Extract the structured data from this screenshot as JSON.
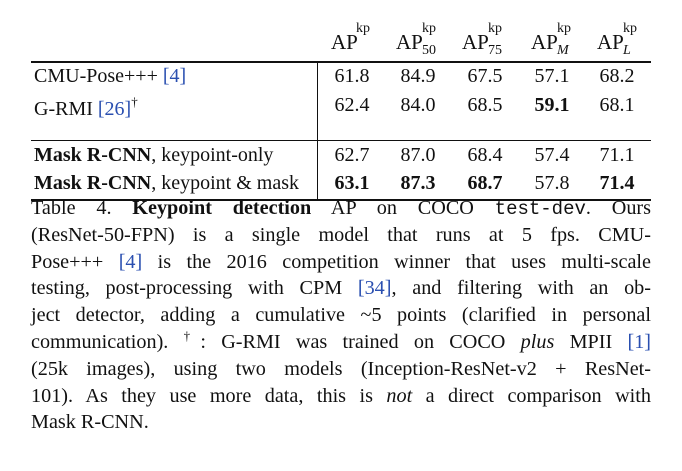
{
  "table": {
    "columns": [
      {
        "base": "AP",
        "sup": "kp",
        "sub": ""
      },
      {
        "base": "AP",
        "sup": "kp",
        "sub": "50"
      },
      {
        "base": "AP",
        "sup": "kp",
        "sub": "75"
      },
      {
        "base": "AP",
        "sup": "kp",
        "sub": "M"
      },
      {
        "base": "AP",
        "sup": "kp",
        "sub": "L"
      }
    ],
    "rows": [
      {
        "method": "CMU-Pose+++",
        "ref": "[4]",
        "dagger": "",
        "values": [
          "61.8",
          "84.9",
          "67.5",
          "57.1",
          "68.2"
        ]
      },
      {
        "method": "G-RMI",
        "ref": "[26]",
        "dagger": "†",
        "values": [
          "62.4",
          "84.0",
          "68.5",
          "59.1",
          "68.1"
        ]
      },
      {
        "method_bold": "Mask R-CNN",
        "method_rest": ", keypoint-only",
        "values": [
          "62.7",
          "87.0",
          "68.4",
          "57.4",
          "71.1"
        ]
      },
      {
        "method_bold": "Mask R-CNN",
        "method_rest": ", keypoint & mask",
        "values": [
          "63.1",
          "87.3",
          "68.7",
          "57.8",
          "71.4"
        ]
      }
    ]
  },
  "caption": {
    "l1_a": "Table 4. ",
    "l1_b": "Keypoint detection",
    "l1_c": " AP on COCO ",
    "l1_d": "test-dev",
    "l1_e": ".  Ours",
    "l2": "(ResNet-50-FPN) is a single model that runs at 5 fps.  CMU-",
    "l3_a": "Pose+++ ",
    "l3_b": "[4]",
    "l3_c": " is the 2016 competition winner that uses multi-scale",
    "l4_a": "testing, post-processing with CPM ",
    "l4_b": "[34]",
    "l4_c": ", and filtering with an ob-",
    "l5": "ject detector, adding a cumulative ~5 points (clarified in personal",
    "l6_a": "communication).  ",
    "l6_b": "†",
    "l6_c": ": G-RMI was trained on COCO ",
    "l6_d": "plus",
    "l6_e": " MPII ",
    "l6_f": "[1]",
    "l7": "(25k images), using two models (Inception-ResNet-v2 + ResNet-",
    "l8_a": "101).  As they use more data, this is ",
    "l8_b": "not",
    "l8_c": " a direct comparison with",
    "l9": "Mask R-CNN."
  }
}
